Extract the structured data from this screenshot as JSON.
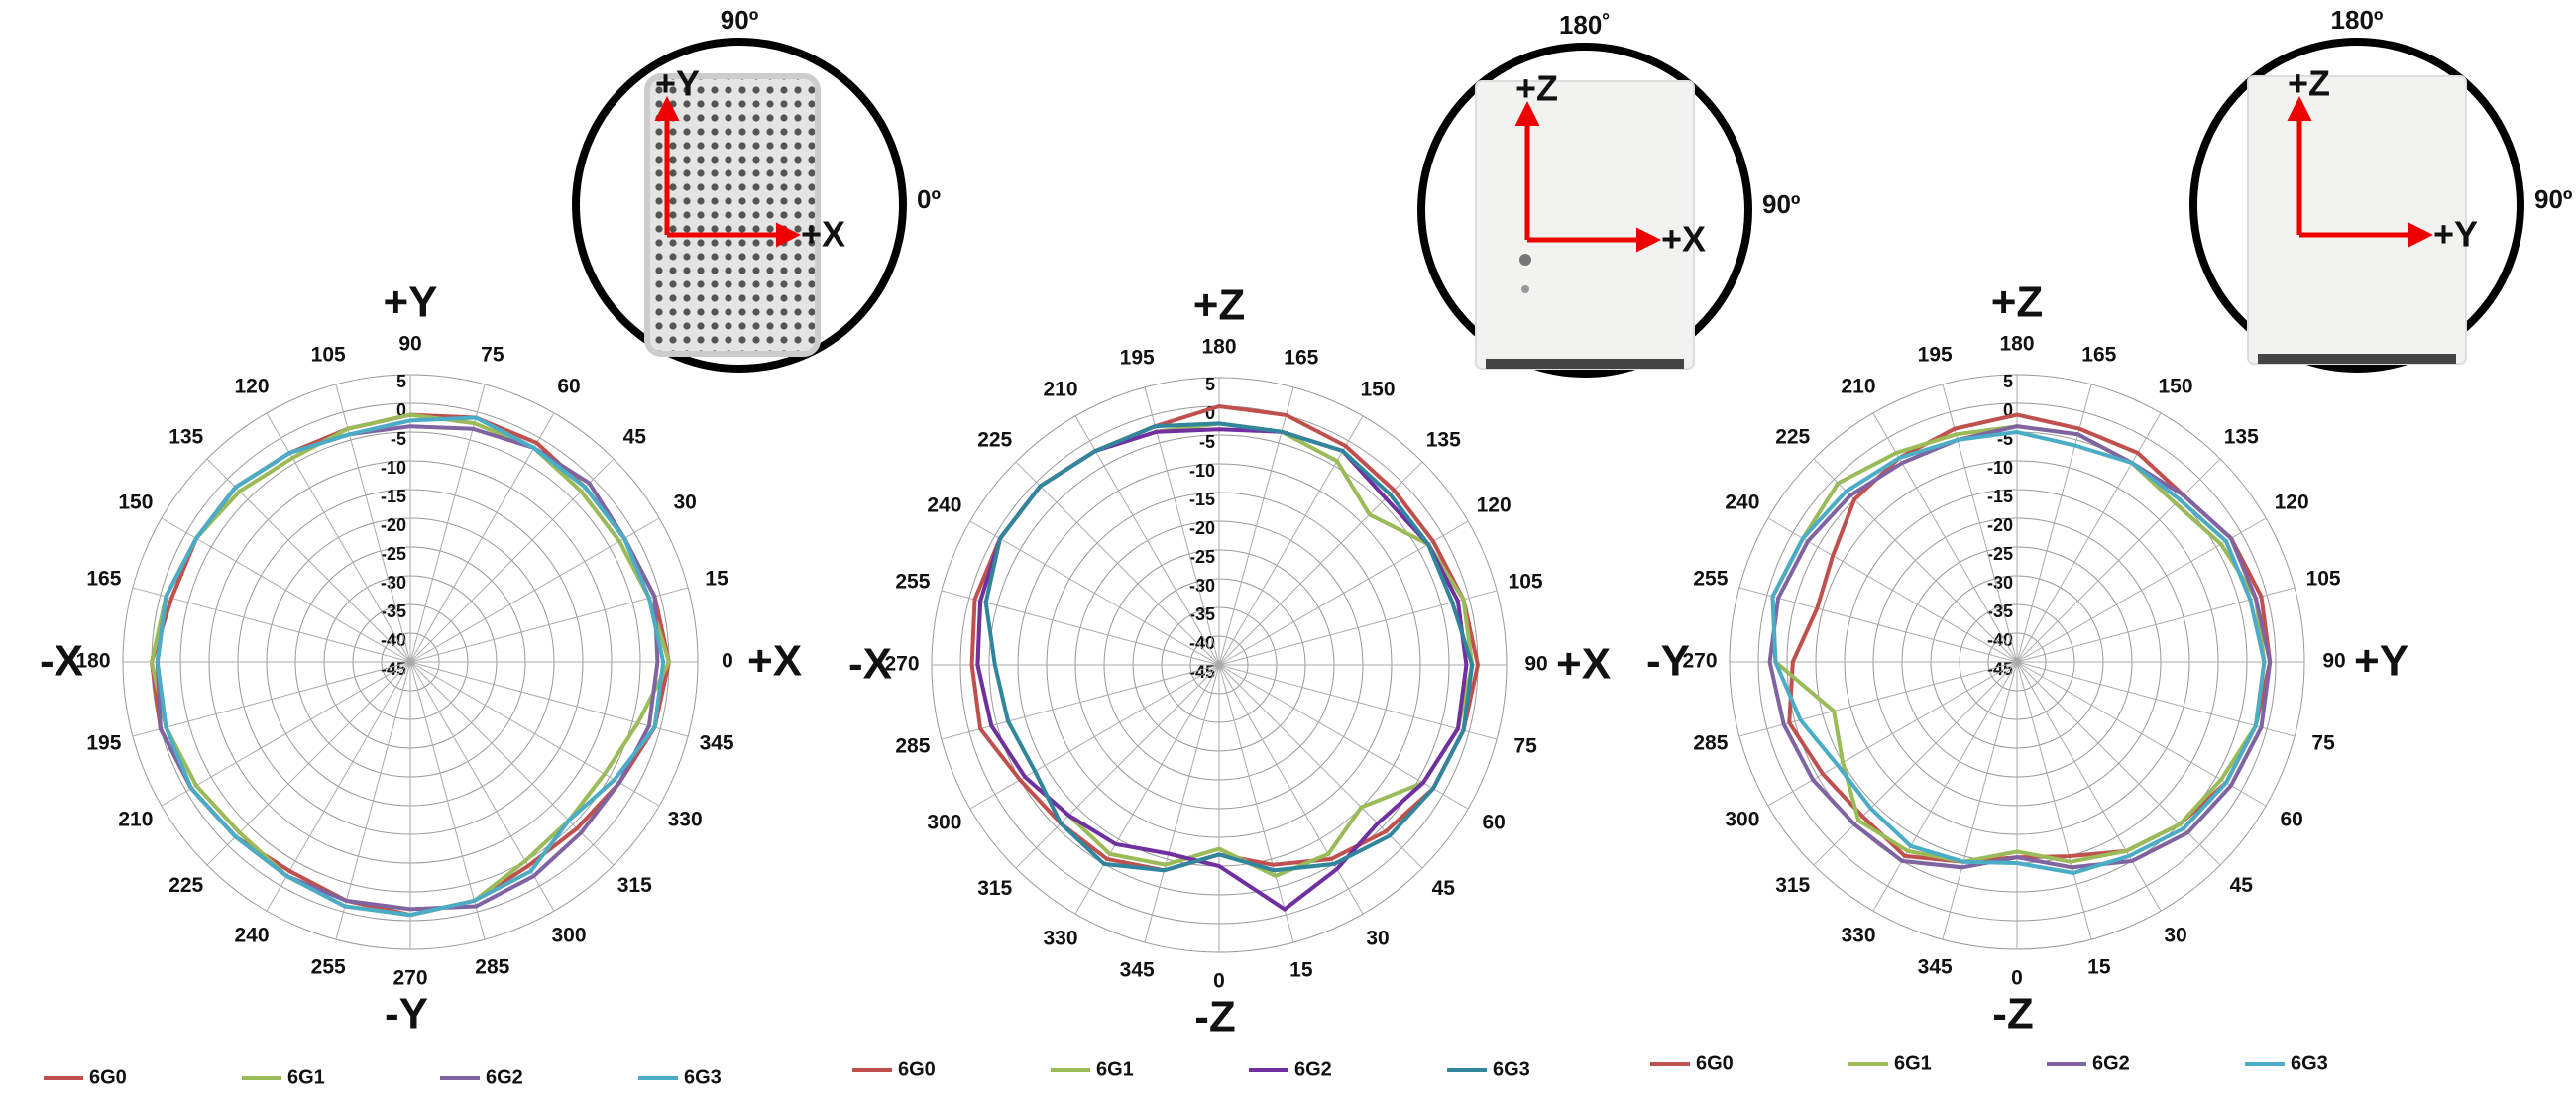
{
  "chart_data": [
    {
      "type": "polar",
      "theta_zero": "E",
      "theta_direction": "counterclockwise",
      "direction_labels": {
        "top": "+Y",
        "left": "-X",
        "right": "+X",
        "bottom": "-Y"
      },
      "inset": {
        "top_label": "90º",
        "side_label": "0º",
        "axis_up": "+Y",
        "axis_right": "+X"
      },
      "theta": [
        0,
        15,
        30,
        45,
        60,
        75,
        90,
        105,
        120,
        135,
        150,
        165,
        180,
        195,
        210,
        225,
        240,
        255,
        270,
        285,
        300,
        315,
        330,
        345
      ],
      "thetaticks": [
        0,
        15,
        30,
        45,
        60,
        75,
        90,
        105,
        120,
        135,
        150,
        165,
        180,
        195,
        210,
        225,
        240,
        255,
        270,
        285,
        300,
        315,
        330,
        345
      ],
      "rlim": [
        -45,
        5
      ],
      "rticks": [
        5,
        0,
        -5,
        -10,
        -15,
        -20,
        -25,
        -30,
        -35,
        -40,
        -45
      ],
      "grid": true,
      "series": [
        {
          "name": "6G0",
          "color": "#c0504d",
          "values": [
            0,
            -1,
            -2,
            -2,
            -1,
            -1,
            -2,
            -3,
            -3,
            -2,
            -2,
            -2,
            0,
            0,
            -1,
            -2,
            -3,
            -2,
            -1,
            -2,
            -4,
            -4,
            -3,
            -1
          ]
        },
        {
          "name": "6G1",
          "color": "#9bbb59",
          "values": [
            0,
            -2,
            -3,
            -3,
            -2,
            -2,
            -2,
            -3,
            -4,
            -3,
            -2,
            -1,
            0,
            -1,
            -2,
            -3,
            -2,
            -1,
            -1,
            -2,
            -5,
            -6,
            -6,
            -4
          ]
        },
        {
          "name": "6G2",
          "color": "#8064a2",
          "values": [
            -2,
            -1,
            -2,
            -1,
            -2,
            -3,
            -4,
            -4,
            -3,
            -2,
            -2,
            -1,
            -1,
            0,
            -1,
            -2,
            -2,
            -2,
            -2,
            -1,
            -2,
            -3,
            -3,
            -2
          ]
        },
        {
          "name": "6G3",
          "color": "#4bacc6",
          "values": [
            -1,
            -2,
            -2,
            -2,
            -2,
            -1,
            -3,
            -4,
            -3,
            -2,
            -2,
            -1,
            -1,
            -1,
            -1,
            -2,
            -2,
            -1,
            -1,
            -2,
            -3,
            -6,
            -4,
            -1
          ]
        }
      ]
    },
    {
      "type": "polar",
      "theta_zero": "S",
      "theta_direction": "counterclockwise",
      "direction_labels": {
        "top": "+Z",
        "left": "-X",
        "right": "+X",
        "bottom": "-Z"
      },
      "inset": {
        "top_label": "180˚",
        "side_label": "90º",
        "axis_up": "+Z",
        "axis_right": "+X"
      },
      "theta": [
        0,
        15,
        30,
        45,
        60,
        75,
        90,
        105,
        120,
        135,
        150,
        165,
        180,
        195,
        210,
        225,
        240,
        255,
        270,
        285,
        300,
        315,
        330,
        345
      ],
      "thetaticks": [
        0,
        15,
        30,
        45,
        60,
        75,
        90,
        105,
        120,
        135,
        150,
        165,
        180,
        195,
        210,
        225,
        240,
        255,
        270,
        285,
        300,
        315,
        330,
        345
      ],
      "rlim": [
        -45,
        5
      ],
      "rticks": [
        5,
        0,
        -5,
        -10,
        -15,
        -20,
        -25,
        -30,
        -35,
        -40,
        -45
      ],
      "grid": true,
      "series": [
        {
          "name": "6G0",
          "color": "#c0504d",
          "values": [
            -12,
            -9,
            -6,
            -4,
            -2,
            -1,
            0,
            -1,
            -2,
            -2,
            -1,
            0,
            0,
            -2,
            -2,
            -1,
            -1,
            -1,
            -2,
            -2,
            -5,
            -6,
            -6,
            -8
          ]
        },
        {
          "name": "6G1",
          "color": "#9bbb59",
          "values": [
            -13,
            -7,
            -7,
            -10,
            -4,
            -2,
            -1,
            -1,
            -3,
            -8,
            -4,
            -3,
            -3,
            -3,
            -2,
            -1,
            -1,
            -2,
            -3,
            -4,
            -6,
            -8,
            -7,
            -9
          ]
        },
        {
          "name": "6G2",
          "color": "#7030a0",
          "values": [
            -10,
            -1,
            -4,
            -6,
            -4,
            -2,
            -2,
            -2,
            -3,
            -4,
            -2,
            -3,
            -4,
            -3,
            -2,
            -1,
            -1,
            -2,
            -3,
            -4,
            -6,
            -8,
            -9,
            -11
          ]
        },
        {
          "name": "6G3",
          "color": "#31859c",
          "values": [
            -12,
            -8,
            -5,
            -3,
            -2,
            -1,
            -1,
            -3,
            -3,
            -3,
            -2,
            -3,
            -3,
            -2,
            -2,
            -1,
            -1,
            -3,
            -6,
            -7,
            -8,
            -6,
            -5,
            -8
          ]
        }
      ]
    },
    {
      "type": "polar",
      "theta_zero": "S",
      "theta_direction": "counterclockwise",
      "direction_labels": {
        "top": "+Z",
        "left": "-Y",
        "right": "+Y",
        "bottom": "-Z"
      },
      "inset": {
        "top_label": "180º",
        "side_label": "90º",
        "axis_up": "+Z",
        "axis_right": "+Y"
      },
      "theta": [
        0,
        15,
        30,
        45,
        60,
        75,
        90,
        105,
        120,
        135,
        150,
        165,
        180,
        195,
        210,
        225,
        240,
        255,
        270,
        285,
        300,
        315,
        330,
        345
      ],
      "thetaticks": [
        0,
        15,
        30,
        45,
        60,
        75,
        90,
        105,
        120,
        135,
        150,
        165,
        180,
        195,
        210,
        225,
        240,
        255,
        270,
        285,
        300,
        315,
        330,
        345
      ],
      "rlim": [
        -45,
        5
      ],
      "rticks": [
        5,
        0,
        -5,
        -10,
        -15,
        -20,
        -25,
        -30,
        -35,
        -40,
        -45
      ],
      "grid": true,
      "series": [
        {
          "name": "6G0",
          "color": "#c0504d",
          "values": [
            -11,
            -10,
            -7,
            -5,
            -3,
            -2,
            -1,
            -1,
            -2,
            -4,
            -3,
            -3,
            -2,
            -3,
            -4,
            -5,
            -8,
            -9,
            -6,
            -4,
            -6,
            -7,
            -6,
            -9
          ]
        },
        {
          "name": "6G1",
          "color": "#9bbb59",
          "values": [
            -12,
            -9,
            -7,
            -5,
            -4,
            -2,
            -2,
            -2,
            -4,
            -6,
            -5,
            -4,
            -4,
            -4,
            -3,
            -1,
            -2,
            -1,
            -3,
            -12,
            -10,
            -6,
            -7,
            -9
          ]
        },
        {
          "name": "6G2",
          "color": "#8064a2",
          "values": [
            -11,
            -8,
            -5,
            -3,
            -2,
            -1,
            -1,
            -2,
            -2,
            -4,
            -5,
            -4,
            -4,
            -5,
            -5,
            -4,
            -3,
            -2,
            -2,
            -3,
            -4,
            -5,
            -5,
            -8
          ]
        },
        {
          "name": "6G3",
          "color": "#4bacc6",
          "values": [
            -10,
            -7,
            -6,
            -4,
            -3,
            -2,
            -2,
            -3,
            -3,
            -5,
            -5,
            -6,
            -5,
            -5,
            -4,
            -3,
            -2,
            -1,
            -3,
            -6,
            -9,
            -9,
            -8,
            -9
          ]
        }
      ]
    }
  ]
}
